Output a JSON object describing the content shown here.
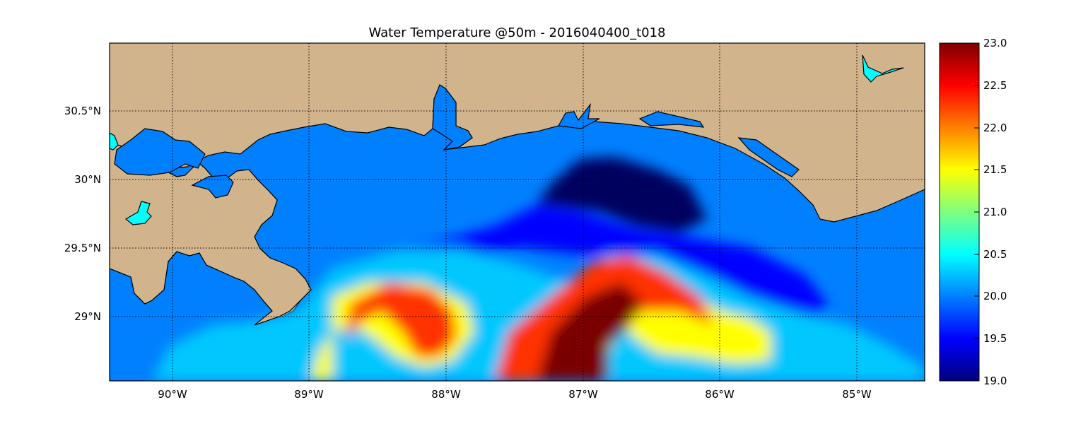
{
  "title": "Water Temperature @50m - 2016040400_t018",
  "map": {
    "x_ticks": [
      "90°W",
      "89°W",
      "88°W",
      "87°W",
      "86°W",
      "85°W"
    ],
    "y_ticks": [
      "30.5°N",
      "30°N",
      "29.5°N",
      "29°N"
    ],
    "colors": {
      "land": "#d2b48c",
      "ocean_default": "#0080ff",
      "lakes": "#00ffff",
      "coast_line": "#000000",
      "grid": "#000000"
    },
    "grid": "dotted"
  },
  "colorbar": {
    "ticks": [
      "23.0",
      "22.5",
      "22.0",
      "21.5",
      "21.0",
      "20.5",
      "20.0",
      "19.5",
      "19.0"
    ],
    "range": [
      19.0,
      23.0
    ],
    "colormap": "jet"
  }
}
